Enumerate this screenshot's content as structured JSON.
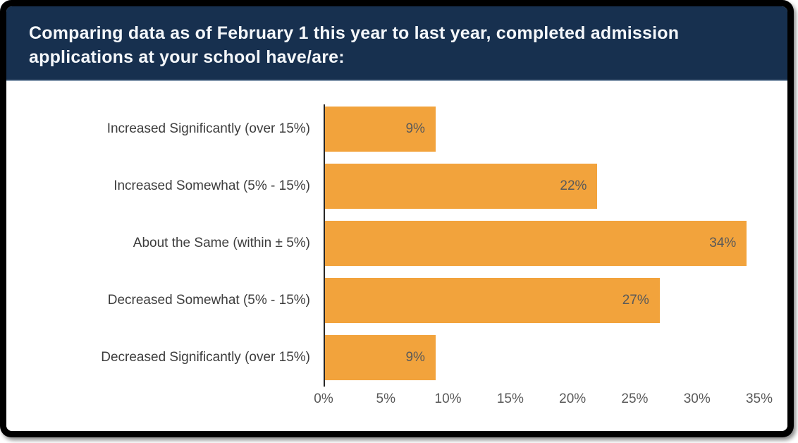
{
  "header": {
    "title": "Comparing data as of February 1 this year to last year, completed admission applications at your school have/are:"
  },
  "colors": {
    "frame": "#000000",
    "header_bg": "#17304f",
    "title_text": "#f4f7fa",
    "bar": "#f2a33c",
    "axis_line": "#262626",
    "label_text": "#3d3d3d",
    "value_text": "#595959",
    "tick_text": "#595959"
  },
  "chart_data": {
    "type": "bar",
    "orientation": "horizontal",
    "title": "Comparing data as of February 1 this year to last year, completed admission applications at your school have/are:",
    "categories": [
      "Increased Significantly (over 15%)",
      "Increased Somewhat (5% - 15%)",
      "About the Same (within ± 5%)",
      "Decreased Somewhat (5% - 15%)",
      "Decreased Significantly (over 15%)"
    ],
    "values": [
      9,
      22,
      34,
      27,
      9
    ],
    "value_labels": [
      "9%",
      "22%",
      "34%",
      "27%",
      "9%"
    ],
    "xlim": [
      0,
      35
    ],
    "x_ticks": [
      "0%",
      "5%",
      "10%",
      "15%",
      "20%",
      "25%",
      "30%",
      "35%"
    ],
    "xlabel": "",
    "ylabel": "",
    "grid": false,
    "legend": "none",
    "value_label_position": "inside-end"
  }
}
